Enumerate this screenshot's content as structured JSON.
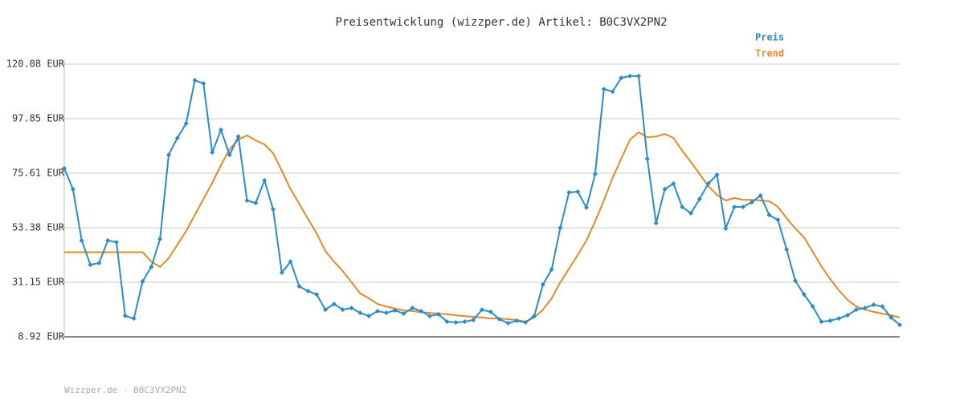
{
  "chart_data": {
    "type": "line",
    "title": "Preisentwicklung (wizzper.de) Artikel: B0C3VX2PN2",
    "footer": "Wizzper.de - B0C3VX2PN2",
    "ylim": [
      8.92,
      120.08
    ],
    "yticks": [
      {
        "value": 8.92,
        "label": "8.92 EUR"
      },
      {
        "value": 31.15,
        "label": "31.15 EUR"
      },
      {
        "value": 53.38,
        "label": "53.38 EUR"
      },
      {
        "value": 75.61,
        "label": "75.61 EUR"
      },
      {
        "value": 97.85,
        "label": "97.85 EUR"
      },
      {
        "value": 120.08,
        "label": "120.08 EUR"
      }
    ],
    "grid": true,
    "legend": "top-right",
    "series": [
      {
        "name": "Preis",
        "color": "#2b8bc8",
        "markers": true,
        "values": [
          77.6,
          69.1,
          48.2,
          38.3,
          39.0,
          48.2,
          47.5,
          17.5,
          16.4,
          31.5,
          37.4,
          48.8,
          83.1,
          90.0,
          95.9,
          113.5,
          112.2,
          84.1,
          93.3,
          83.1,
          90.6,
          64.5,
          63.5,
          72.7,
          60.9,
          35.1,
          39.6,
          29.5,
          27.6,
          26.2,
          20.0,
          22.3,
          20.0,
          20.7,
          18.7,
          17.4,
          19.4,
          18.7,
          19.7,
          18.4,
          20.7,
          19.4,
          17.4,
          18.1,
          15.1,
          14.8,
          15.1,
          15.8,
          20.0,
          19.1,
          16.1,
          14.5,
          15.5,
          14.8,
          17.4,
          30.2,
          36.4,
          53.4,
          67.8,
          68.1,
          61.6,
          75.3,
          109.9,
          108.9,
          114.5,
          115.2,
          115.2,
          81.5,
          55.3,
          69.1,
          71.4,
          61.9,
          59.3,
          65.1,
          71.4,
          75.0,
          53.1,
          61.9,
          61.9,
          63.8,
          66.5,
          58.6,
          56.6,
          44.5,
          31.8,
          26.2,
          21.3,
          15.1,
          15.5,
          16.4,
          17.7,
          20.0,
          20.7,
          22.0,
          21.3,
          16.8,
          13.8
        ]
      },
      {
        "name": "Trend",
        "color": "#e08b24",
        "markers": false,
        "values": [
          43.4,
          43.4,
          43.4,
          43.4,
          43.4,
          43.4,
          43.4,
          43.4,
          43.4,
          43.4,
          39.6,
          37.4,
          41.0,
          46.5,
          52.0,
          58.6,
          65.1,
          71.7,
          78.9,
          85.4,
          89.3,
          91.0,
          89.0,
          87.4,
          83.8,
          76.6,
          69.1,
          63.2,
          57.0,
          51.1,
          43.9,
          39.6,
          35.7,
          31.2,
          26.6,
          24.6,
          22.3,
          21.3,
          20.4,
          19.7,
          19.4,
          19.0,
          18.7,
          18.4,
          18.1,
          17.7,
          17.4,
          17.1,
          16.8,
          16.4,
          16.4,
          16.1,
          15.8,
          15.1,
          16.8,
          20.0,
          24.6,
          31.2,
          36.7,
          42.3,
          48.2,
          56.0,
          64.5,
          73.7,
          81.5,
          89.3,
          92.3,
          90.3,
          90.6,
          91.6,
          90.0,
          84.8,
          80.2,
          75.3,
          70.4,
          66.8,
          64.5,
          65.5,
          64.8,
          64.8,
          64.5,
          64.2,
          61.9,
          57.3,
          53.1,
          49.5,
          43.6,
          37.7,
          32.5,
          27.9,
          24.0,
          21.3,
          20.0,
          19.1,
          18.4,
          17.7,
          16.8
        ]
      }
    ]
  }
}
